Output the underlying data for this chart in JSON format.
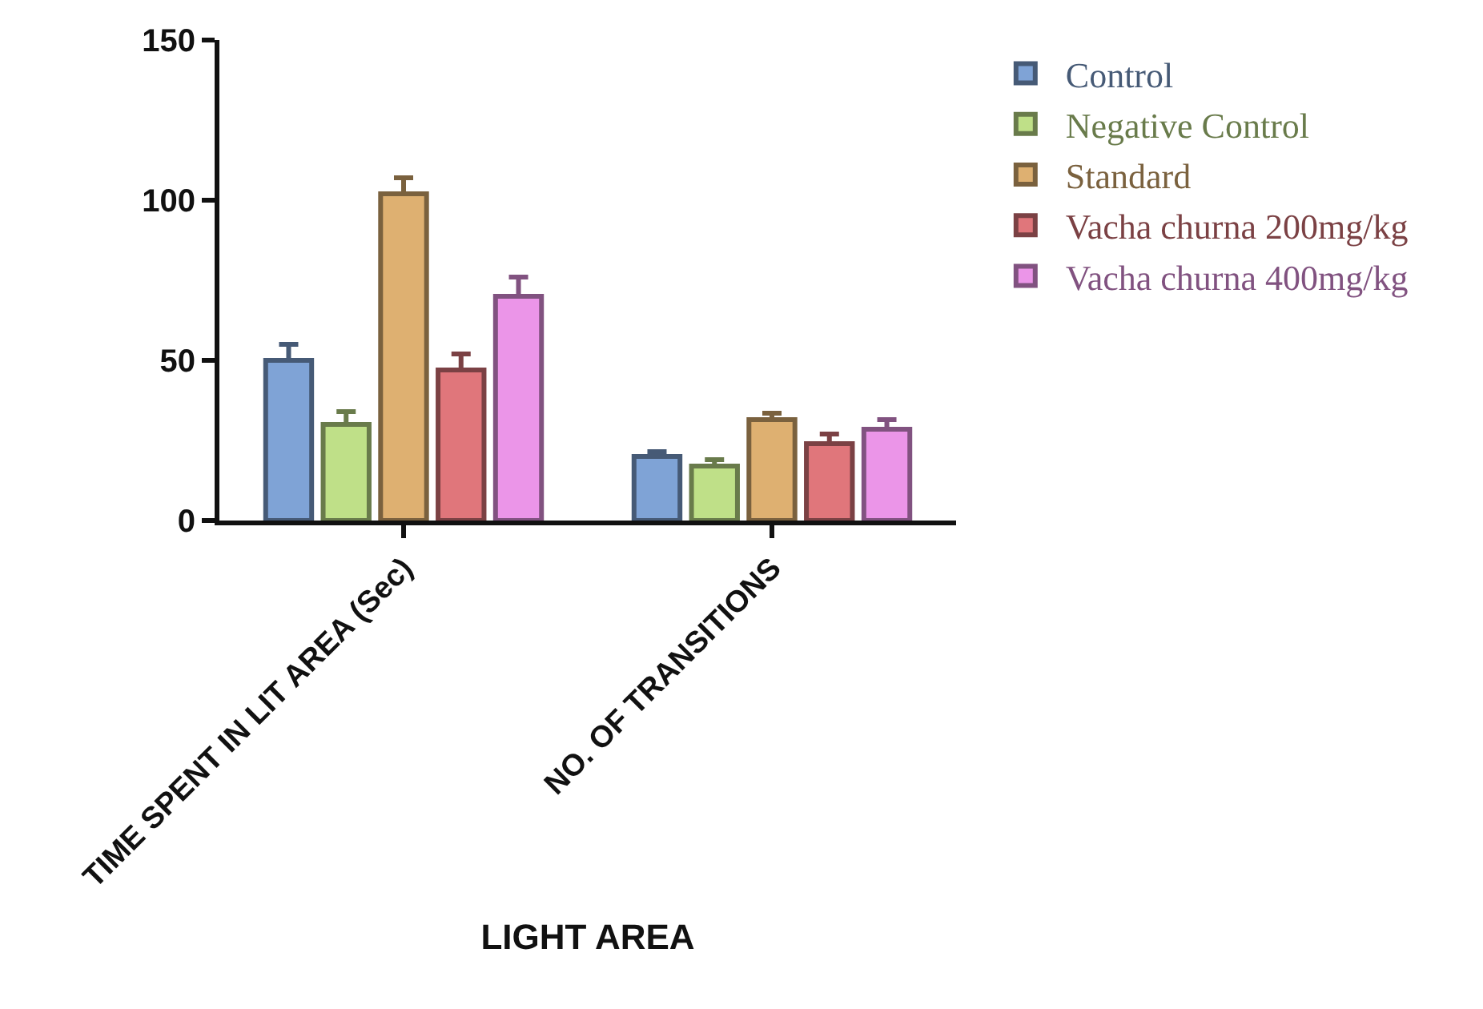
{
  "chart_data": {
    "type": "bar",
    "xlabel": "LIGHT AREA",
    "categories": [
      "TIME SPENT IN LIT AREA (Sec)",
      "NO. OF TRANSITIONS"
    ],
    "series": [
      {
        "name": "Control",
        "color": "#7fa3d6",
        "values": [
          50,
          20
        ],
        "errors": [
          5,
          1.5
        ]
      },
      {
        "name": "Negative Control",
        "color": "#bfe088",
        "values": [
          30,
          17
        ],
        "errors": [
          4,
          2
        ]
      },
      {
        "name": "Standard",
        "color": "#deb071",
        "values": [
          102,
          31.5
        ],
        "errors": [
          5,
          2
        ]
      },
      {
        "name": "Vacha churna 200mg/kg",
        "color": "#e0767b",
        "values": [
          47,
          24
        ],
        "errors": [
          5,
          3
        ]
      },
      {
        "name": "Vacha churna 400mg/kg",
        "color": "#eb95e8",
        "values": [
          70,
          28.5
        ],
        "errors": [
          6,
          3
        ]
      }
    ],
    "ylim": [
      0,
      150
    ],
    "yticks": [
      0,
      50,
      100,
      150
    ],
    "grid": false,
    "legend": "top right"
  }
}
